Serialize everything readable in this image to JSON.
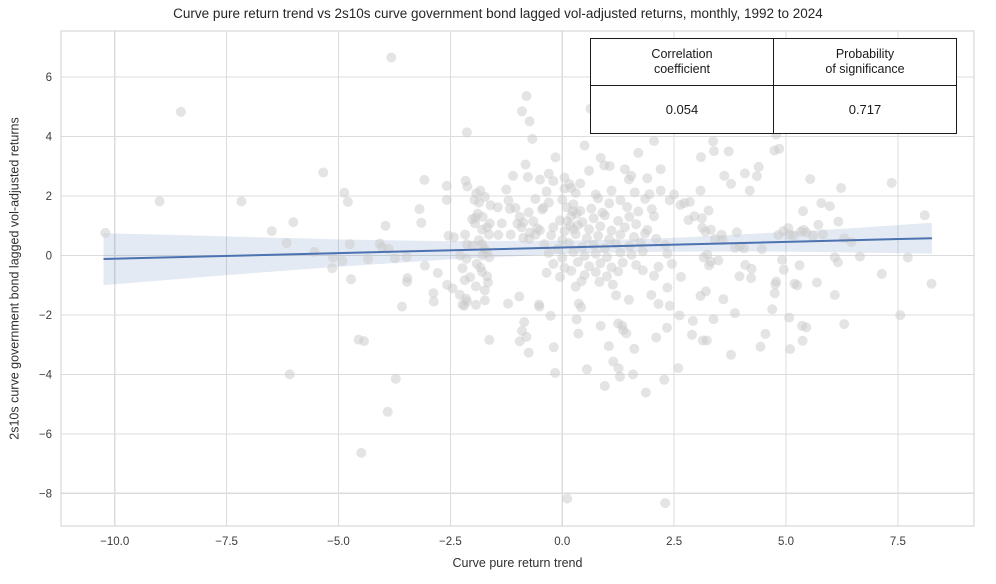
{
  "title": "Curve pure return trend vs 2s10s curve government bond lagged vol-adjusted returns, monthly, 1992 to 2024",
  "stats_table": {
    "col1_header_line1": "Correlation",
    "col1_header_line2": "coefficient",
    "col2_header_line1": "Probability",
    "col2_header_line2": "of significance",
    "col1_value": "0.054",
    "col2_value": "0.717"
  },
  "chart_data": {
    "type": "scatter",
    "title": "Curve pure return trend vs 2s10s curve government bond lagged vol-adjusted returns, monthly, 1992 to 2024",
    "xlabel": "Curve pure return trend",
    "ylabel": "2s10s curve government bond lagged vol-adjusted returns",
    "xlim": [
      -11.2,
      9.2
    ],
    "ylim": [
      -9.1,
      7.55
    ],
    "grid": true,
    "legend": "none",
    "colors": {
      "point": "#c9c9c9",
      "point_opacity": 0.5,
      "line": "#4c72b0",
      "band": "#4c72b0",
      "band_opacity": 0.15,
      "gridline": "#dcdcdc",
      "spine": "#d0d0d0",
      "tick_text": "#3b3b3b"
    },
    "xticks": [
      {
        "v": -10,
        "label": "−10.0"
      },
      {
        "v": -7.5,
        "label": "−7.5"
      },
      {
        "v": -5,
        "label": "−5.0"
      },
      {
        "v": -2.5,
        "label": "−2.5"
      },
      {
        "v": 0,
        "label": "0.0"
      },
      {
        "v": 2.5,
        "label": "2.5"
      },
      {
        "v": 5,
        "label": "5.0"
      },
      {
        "v": 7.5,
        "label": "7.5"
      }
    ],
    "yticks": [
      {
        "v": 6,
        "label": "6"
      },
      {
        "v": 4,
        "label": "4"
      },
      {
        "v": 2,
        "label": "2"
      },
      {
        "v": 0,
        "label": "0"
      },
      {
        "v": -2,
        "label": "−2"
      },
      {
        "v": -4,
        "label": "−4"
      },
      {
        "v": -6,
        "label": "−6"
      },
      {
        "v": -8,
        "label": "−8"
      }
    ],
    "regression": {
      "x": [
        -10.25,
        8.26
      ],
      "y": [
        -0.12,
        0.58
      ]
    },
    "band": {
      "x": [
        -10.25,
        -7.5,
        -5.0,
        -2.5,
        0.0,
        1.0,
        2.0,
        3.0,
        5.0,
        6.5,
        8.26
      ],
      "top": [
        0.75,
        0.64,
        0.54,
        0.48,
        0.5,
        0.52,
        0.56,
        0.63,
        0.79,
        0.92,
        1.1
      ],
      "bottom": [
        -1.0,
        -0.66,
        -0.38,
        -0.13,
        0.05,
        0.1,
        0.12,
        0.13,
        0.13,
        0.1,
        0.06
      ]
    },
    "correlation_coefficient": 0.054,
    "probability_of_significance": 0.717,
    "points": [
      [
        -10.21,
        0.76
      ],
      [
        -9.0,
        1.82
      ],
      [
        -8.52,
        4.83
      ],
      [
        -7.17,
        1.82
      ],
      [
        -6.49,
        0.82
      ],
      [
        -6.16,
        0.42
      ],
      [
        -6.09,
        -4.0
      ],
      [
        -6.01,
        1.12
      ],
      [
        -5.54,
        0.12
      ],
      [
        -5.34,
        2.79
      ],
      [
        -5.14,
        -0.43
      ],
      [
        -5.12,
        -0.07
      ],
      [
        -4.91,
        -0.18
      ],
      [
        -4.87,
        2.11
      ],
      [
        -4.79,
        1.8
      ],
      [
        -4.75,
        0.38
      ],
      [
        -4.72,
        -0.8
      ],
      [
        -4.55,
        -2.83
      ],
      [
        -4.43,
        -2.88
      ],
      [
        -4.49,
        -6.64
      ],
      [
        -4.34,
        -0.12
      ],
      [
        -4.08,
        0.4
      ],
      [
        -4.03,
        0.28
      ],
      [
        -3.95,
        1.0
      ],
      [
        -3.9,
        -5.26
      ],
      [
        -3.88,
        0.22
      ],
      [
        -3.82,
        6.66
      ],
      [
        -3.74,
        -0.1
      ],
      [
        -3.72,
        -4.15
      ],
      [
        -3.58,
        -1.72
      ],
      [
        -3.48,
        -0.05
      ],
      [
        -3.47,
        -0.89
      ],
      [
        -3.46,
        -0.76
      ],
      [
        -3.19,
        1.56
      ],
      [
        -3.15,
        1.1
      ],
      [
        -3.08,
        2.54
      ],
      [
        -3.07,
        -0.34
      ],
      [
        -2.88,
        -1.27
      ],
      [
        -2.87,
        -1.55
      ],
      [
        -2.78,
        -0.59
      ],
      [
        -2.58,
        2.34
      ],
      [
        -2.58,
        1.87
      ],
      [
        -2.57,
        -0.99
      ],
      [
        -2.54,
        0.66
      ],
      [
        -2.45,
        -1.11
      ],
      [
        -2.42,
        0.61
      ],
      [
        -2.29,
        -1.32
      ],
      [
        -2.28,
        0.0
      ],
      [
        -2.23,
        -0.43
      ],
      [
        -2.23,
        -1.65
      ],
      [
        -2.19,
        -1.69
      ],
      [
        -2.18,
        -0.83
      ],
      [
        -2.17,
        0.7
      ],
      [
        -2.16,
        2.51
      ],
      [
        -2.15,
        -1.45
      ],
      [
        -2.14,
        -0.11
      ],
      [
        -2.13,
        4.14
      ],
      [
        -2.13,
        0.38
      ],
      [
        -2.13,
        -1.55
      ],
      [
        -2.12,
        2.32
      ],
      [
        -2.06,
        -0.73
      ],
      [
        -2.01,
        1.22
      ],
      [
        -2.0,
        0.33
      ],
      [
        -1.96,
        1.87
      ],
      [
        -1.95,
        1.08
      ],
      [
        -1.94,
        1.27
      ],
      [
        -1.93,
        -1.04
      ],
      [
        -1.93,
        -1.66
      ],
      [
        -1.92,
        2.09
      ],
      [
        -1.91,
        -0.28
      ],
      [
        -1.89,
        1.4
      ],
      [
        -1.86,
        1.78
      ],
      [
        -1.86,
        0.51
      ],
      [
        -1.83,
        2.18
      ],
      [
        -1.83,
        -0.41
      ],
      [
        -1.79,
        0.87
      ],
      [
        -1.79,
        0.38
      ],
      [
        -1.79,
        -0.55
      ],
      [
        -1.78,
        1.3
      ],
      [
        -1.78,
        0.01
      ],
      [
        -1.74,
        0.23
      ],
      [
        -1.73,
        1.97
      ],
      [
        -1.73,
        -1.17
      ],
      [
        -1.73,
        -1.51
      ],
      [
        -1.69,
        0.11
      ],
      [
        -1.68,
        0.95
      ],
      [
        -1.68,
        -0.7
      ],
      [
        -1.66,
        -0.91
      ],
      [
        -1.64,
        0.7
      ],
      [
        -1.63,
        -0.06
      ],
      [
        -1.63,
        -2.84
      ],
      [
        -1.62,
        1.08
      ],
      [
        -1.6,
        1.69
      ],
      [
        -1.44,
        1.62
      ],
      [
        -1.43,
        0.69
      ],
      [
        -1.35,
        1.08
      ],
      [
        -1.21,
        -1.62
      ],
      [
        -1.17,
        1.57
      ],
      [
        -1.15,
        0.7
      ],
      [
        -1.1,
        2.68
      ],
      [
        -1.0,
        1.07
      ],
      [
        -0.96,
        -1.38
      ],
      [
        -0.95,
        -2.89
      ],
      [
        -0.91,
        0.95
      ],
      [
        -0.9,
        4.85
      ],
      [
        -0.9,
        -2.54
      ],
      [
        -0.87,
        1.11
      ],
      [
        -0.87,
        0.59
      ],
      [
        -0.85,
        -2.24
      ],
      [
        -0.82,
        3.06
      ],
      [
        -0.8,
        5.36
      ],
      [
        -0.8,
        -2.74
      ],
      [
        -0.77,
        2.64
      ],
      [
        -0.75,
        -3.27
      ],
      [
        -0.74,
        0.56
      ],
      [
        -0.73,
        4.51
      ],
      [
        -0.72,
        0.77
      ],
      [
        -0.67,
        3.92
      ],
      [
        -0.6,
        0.7
      ],
      [
        -0.56,
        0.91
      ],
      [
        -0.52,
        -1.65
      ],
      [
        -0.51,
        -1.72
      ],
      [
        -0.42,
        1.6
      ],
      [
        -0.26,
        -2.03
      ],
      [
        -0.2,
        2.5
      ],
      [
        -0.19,
        -3.09
      ],
      [
        -0.16,
        -3.95
      ],
      [
        0.1,
        1.15
      ],
      [
        0.11,
        -8.18
      ],
      [
        0.16,
        2.4
      ],
      [
        0.18,
        1.0
      ],
      [
        0.2,
        2.27
      ],
      [
        0.24,
        1.49
      ],
      [
        0.25,
        0.88
      ],
      [
        0.3,
        -1.05
      ],
      [
        0.32,
        1.4
      ],
      [
        0.32,
        -2.15
      ],
      [
        0.36,
        -2.63
      ],
      [
        0.37,
        -1.62
      ],
      [
        0.4,
        2.42
      ],
      [
        0.42,
        -1.74
      ],
      [
        0.43,
        -0.87
      ],
      [
        0.5,
        3.7
      ],
      [
        0.55,
        -3.83
      ],
      [
        0.63,
        4.94
      ],
      [
        0.83,
        -0.89
      ],
      [
        0.86,
        3.28
      ],
      [
        0.86,
        -2.37
      ],
      [
        0.94,
        3.03
      ],
      [
        0.95,
        -4.39
      ],
      [
        1.04,
        -3.05
      ],
      [
        1.06,
        3.01
      ],
      [
        1.13,
        -0.98
      ],
      [
        1.14,
        -3.57
      ],
      [
        1.2,
        -1.34
      ],
      [
        1.25,
        -2.29
      ],
      [
        1.26,
        -3.8
      ],
      [
        1.29,
        -4.08
      ],
      [
        1.34,
        -2.36
      ],
      [
        1.36,
        -2.51
      ],
      [
        1.43,
        -2.62
      ],
      [
        1.49,
        2.56
      ],
      [
        1.49,
        -1.49
      ],
      [
        1.54,
        2.68
      ],
      [
        1.58,
        -4.0
      ],
      [
        1.61,
        -3.14
      ],
      [
        1.87,
        -4.61
      ],
      [
        1.99,
        -1.33
      ],
      [
        2.1,
        -2.76
      ],
      [
        2.15,
        -1.63
      ],
      [
        2.28,
        -4.18
      ],
      [
        2.3,
        -8.33
      ],
      [
        2.34,
        -2.43
      ],
      [
        2.35,
        -1.08
      ],
      [
        2.4,
        -1.69
      ],
      [
        2.59,
        -3.79
      ],
      [
        2.62,
        -2.02
      ],
      [
        2.64,
        1.7
      ],
      [
        2.73,
        1.76
      ],
      [
        2.82,
        1.19
      ],
      [
        2.85,
        1.8
      ],
      [
        2.9,
        -2.67
      ],
      [
        2.92,
        -2.2
      ],
      [
        2.95,
        1.32
      ],
      [
        3.09,
        2.18
      ],
      [
        3.09,
        -1.36
      ],
      [
        3.1,
        3.31
      ],
      [
        3.12,
        1.25
      ],
      [
        3.13,
        0.93
      ],
      [
        3.14,
        -2.86
      ],
      [
        3.16,
        -0.07
      ],
      [
        3.2,
        0.8
      ],
      [
        3.21,
        -1.21
      ],
      [
        3.23,
        -2.86
      ],
      [
        3.24,
        0.03
      ],
      [
        3.27,
        1.51
      ],
      [
        3.28,
        -0.33
      ],
      [
        3.32,
        0.87
      ],
      [
        3.32,
        -0.21
      ],
      [
        3.37,
        3.84
      ],
      [
        3.38,
        -2.14
      ],
      [
        3.39,
        3.51
      ],
      [
        3.41,
        0.56
      ],
      [
        3.49,
        -0.17
      ],
      [
        3.56,
        0.7
      ],
      [
        3.58,
        0.52
      ],
      [
        3.6,
        -1.47
      ],
      [
        3.62,
        2.68
      ],
      [
        3.72,
        3.5
      ],
      [
        3.77,
        2.41
      ],
      [
        3.77,
        -3.34
      ],
      [
        3.86,
        0.26
      ],
      [
        3.86,
        -1.94
      ],
      [
        3.9,
        0.78
      ],
      [
        3.96,
        -0.7
      ],
      [
        3.97,
        0.3
      ],
      [
        4.06,
        0.24
      ],
      [
        4.08,
        2.76
      ],
      [
        4.09,
        -0.32
      ],
      [
        4.19,
        2.18
      ],
      [
        4.22,
        -0.76
      ],
      [
        4.23,
        -0.45
      ],
      [
        4.35,
        2.67
      ],
      [
        4.39,
        2.98
      ],
      [
        4.43,
        -3.07
      ],
      [
        4.46,
        0.21
      ],
      [
        4.54,
        -2.64
      ],
      [
        4.69,
        -1.81
      ],
      [
        4.74,
        3.53
      ],
      [
        4.75,
        -1.27
      ],
      [
        4.76,
        -0.97
      ],
      [
        4.78,
        4.07
      ],
      [
        4.78,
        -0.88
      ],
      [
        4.83,
        0.69
      ],
      [
        4.85,
        3.59
      ],
      [
        4.91,
        -0.15
      ],
      [
        4.94,
        0.82
      ],
      [
        4.95,
        -0.48
      ],
      [
        5.05,
        0.92
      ],
      [
        5.07,
        -2.09
      ],
      [
        5.08,
        0.7
      ],
      [
        5.09,
        -3.15
      ],
      [
        5.17,
        0.67
      ],
      [
        5.19,
        -0.95
      ],
      [
        5.25,
        -1.0
      ],
      [
        5.3,
        -0.33
      ],
      [
        5.33,
        0.8
      ],
      [
        5.36,
        -2.37
      ],
      [
        5.37,
        -2.87
      ],
      [
        5.38,
        1.49
      ],
      [
        5.39,
        0.86
      ],
      [
        5.45,
        0.78
      ],
      [
        5.45,
        -2.42
      ],
      [
        5.54,
        2.57
      ],
      [
        5.6,
        0.66
      ],
      [
        5.69,
        -0.91
      ],
      [
        5.72,
        1.03
      ],
      [
        5.79,
        1.76
      ],
      [
        5.82,
        0.71
      ],
      [
        5.98,
        1.66
      ],
      [
        6.09,
        -1.33
      ],
      [
        6.09,
        -0.06
      ],
      [
        6.16,
        -0.23
      ],
      [
        6.17,
        1.14
      ],
      [
        6.23,
        2.27
      ],
      [
        6.3,
        0.58
      ],
      [
        6.3,
        -2.31
      ],
      [
        6.46,
        0.45
      ],
      [
        6.65,
        -0.04
      ],
      [
        7.14,
        -0.62
      ],
      [
        7.36,
        2.44
      ],
      [
        7.55,
        -2.01
      ],
      [
        7.72,
        -0.07
      ],
      [
        8.1,
        1.35
      ],
      [
        8.25,
        -0.95
      ],
      [
        -1.25,
        2.22
      ],
      [
        -0.35,
        2.15
      ],
      [
        0.05,
        2.25
      ],
      [
        0.3,
        2.1
      ],
      [
        0.75,
        2.05
      ],
      [
        1.1,
        2.18
      ],
      [
        1.62,
        2.12
      ],
      [
        1.95,
        2.06
      ],
      [
        2.2,
        2.18
      ],
      [
        2.5,
        2.05
      ],
      [
        -1.2,
        1.85
      ],
      [
        -0.6,
        1.9
      ],
      [
        -0.3,
        1.78
      ],
      [
        0.0,
        1.88
      ],
      [
        0.25,
        1.72
      ],
      [
        0.8,
        1.92
      ],
      [
        1.05,
        1.75
      ],
      [
        1.3,
        1.86
      ],
      [
        1.85,
        1.9
      ],
      [
        2.4,
        1.86
      ],
      [
        -1.05,
        1.6
      ],
      [
        -0.75,
        1.45
      ],
      [
        -0.45,
        1.55
      ],
      [
        0.1,
        1.62
      ],
      [
        0.4,
        1.5
      ],
      [
        0.65,
        1.58
      ],
      [
        0.9,
        1.44
      ],
      [
        1.45,
        1.63
      ],
      [
        1.7,
        1.48
      ],
      [
        2.0,
        1.56
      ],
      [
        -0.95,
        1.3
      ],
      [
        -0.65,
        1.15
      ],
      [
        -0.05,
        1.18
      ],
      [
        0.2,
        1.32
      ],
      [
        0.45,
        1.12
      ],
      [
        0.7,
        1.25
      ],
      [
        0.95,
        1.35
      ],
      [
        1.25,
        1.16
      ],
      [
        1.5,
        1.3
      ],
      [
        2.05,
        1.32
      ],
      [
        -0.5,
        0.85
      ],
      [
        -0.2,
        0.95
      ],
      [
        0.05,
        0.82
      ],
      [
        0.35,
        1.02
      ],
      [
        0.6,
        0.88
      ],
      [
        0.85,
        0.98
      ],
      [
        1.1,
        0.84
      ],
      [
        1.4,
        0.95
      ],
      [
        1.65,
        1.05
      ],
      [
        1.9,
        0.86
      ],
      [
        -0.25,
        0.68
      ],
      [
        0.0,
        0.52
      ],
      [
        0.3,
        0.72
      ],
      [
        0.55,
        0.58
      ],
      [
        0.8,
        0.66
      ],
      [
        1.05,
        0.54
      ],
      [
        1.3,
        0.7
      ],
      [
        1.6,
        0.62
      ],
      [
        1.85,
        0.74
      ],
      [
        2.1,
        0.56
      ],
      [
        -0.4,
        0.38
      ],
      [
        -0.1,
        0.22
      ],
      [
        0.15,
        0.42
      ],
      [
        0.45,
        0.28
      ],
      [
        0.7,
        0.36
      ],
      [
        0.95,
        0.24
      ],
      [
        1.2,
        0.4
      ],
      [
        1.5,
        0.32
      ],
      [
        1.75,
        0.44
      ],
      [
        2.3,
        0.36
      ],
      [
        -0.3,
        0.08
      ],
      [
        0.0,
        -0.08
      ],
      [
        0.25,
        0.12
      ],
      [
        0.5,
        -0.02
      ],
      [
        0.75,
        0.06
      ],
      [
        1.0,
        -0.06
      ],
      [
        1.3,
        0.1
      ],
      [
        1.55,
        0.02
      ],
      [
        1.8,
        0.14
      ],
      [
        2.35,
        0.06
      ],
      [
        -0.2,
        -0.28
      ],
      [
        0.05,
        -0.42
      ],
      [
        0.35,
        -0.22
      ],
      [
        0.6,
        -0.36
      ],
      [
        0.85,
        -0.26
      ],
      [
        1.1,
        -0.4
      ],
      [
        1.35,
        -0.24
      ],
      [
        1.65,
        -0.32
      ],
      [
        2.15,
        -0.38
      ],
      [
        2.45,
        -0.28
      ],
      [
        -0.35,
        -0.58
      ],
      [
        -0.05,
        -0.72
      ],
      [
        0.2,
        -0.52
      ],
      [
        0.5,
        -0.66
      ],
      [
        0.75,
        -0.56
      ],
      [
        1.0,
        -0.7
      ],
      [
        1.25,
        -0.54
      ],
      [
        1.8,
        -0.5
      ],
      [
        2.05,
        -0.68
      ],
      [
        2.65,
        -0.72
      ],
      [
        0.6,
        2.85
      ],
      [
        1.4,
        2.9
      ],
      [
        -0.3,
        2.75
      ],
      [
        1.9,
        2.6
      ],
      [
        -0.15,
        3.3
      ],
      [
        0.05,
        2.62
      ],
      [
        2.2,
        2.9
      ],
      [
        1.7,
        3.45
      ],
      [
        -0.5,
        2.55
      ],
      [
        2.05,
        3.85
      ]
    ]
  }
}
